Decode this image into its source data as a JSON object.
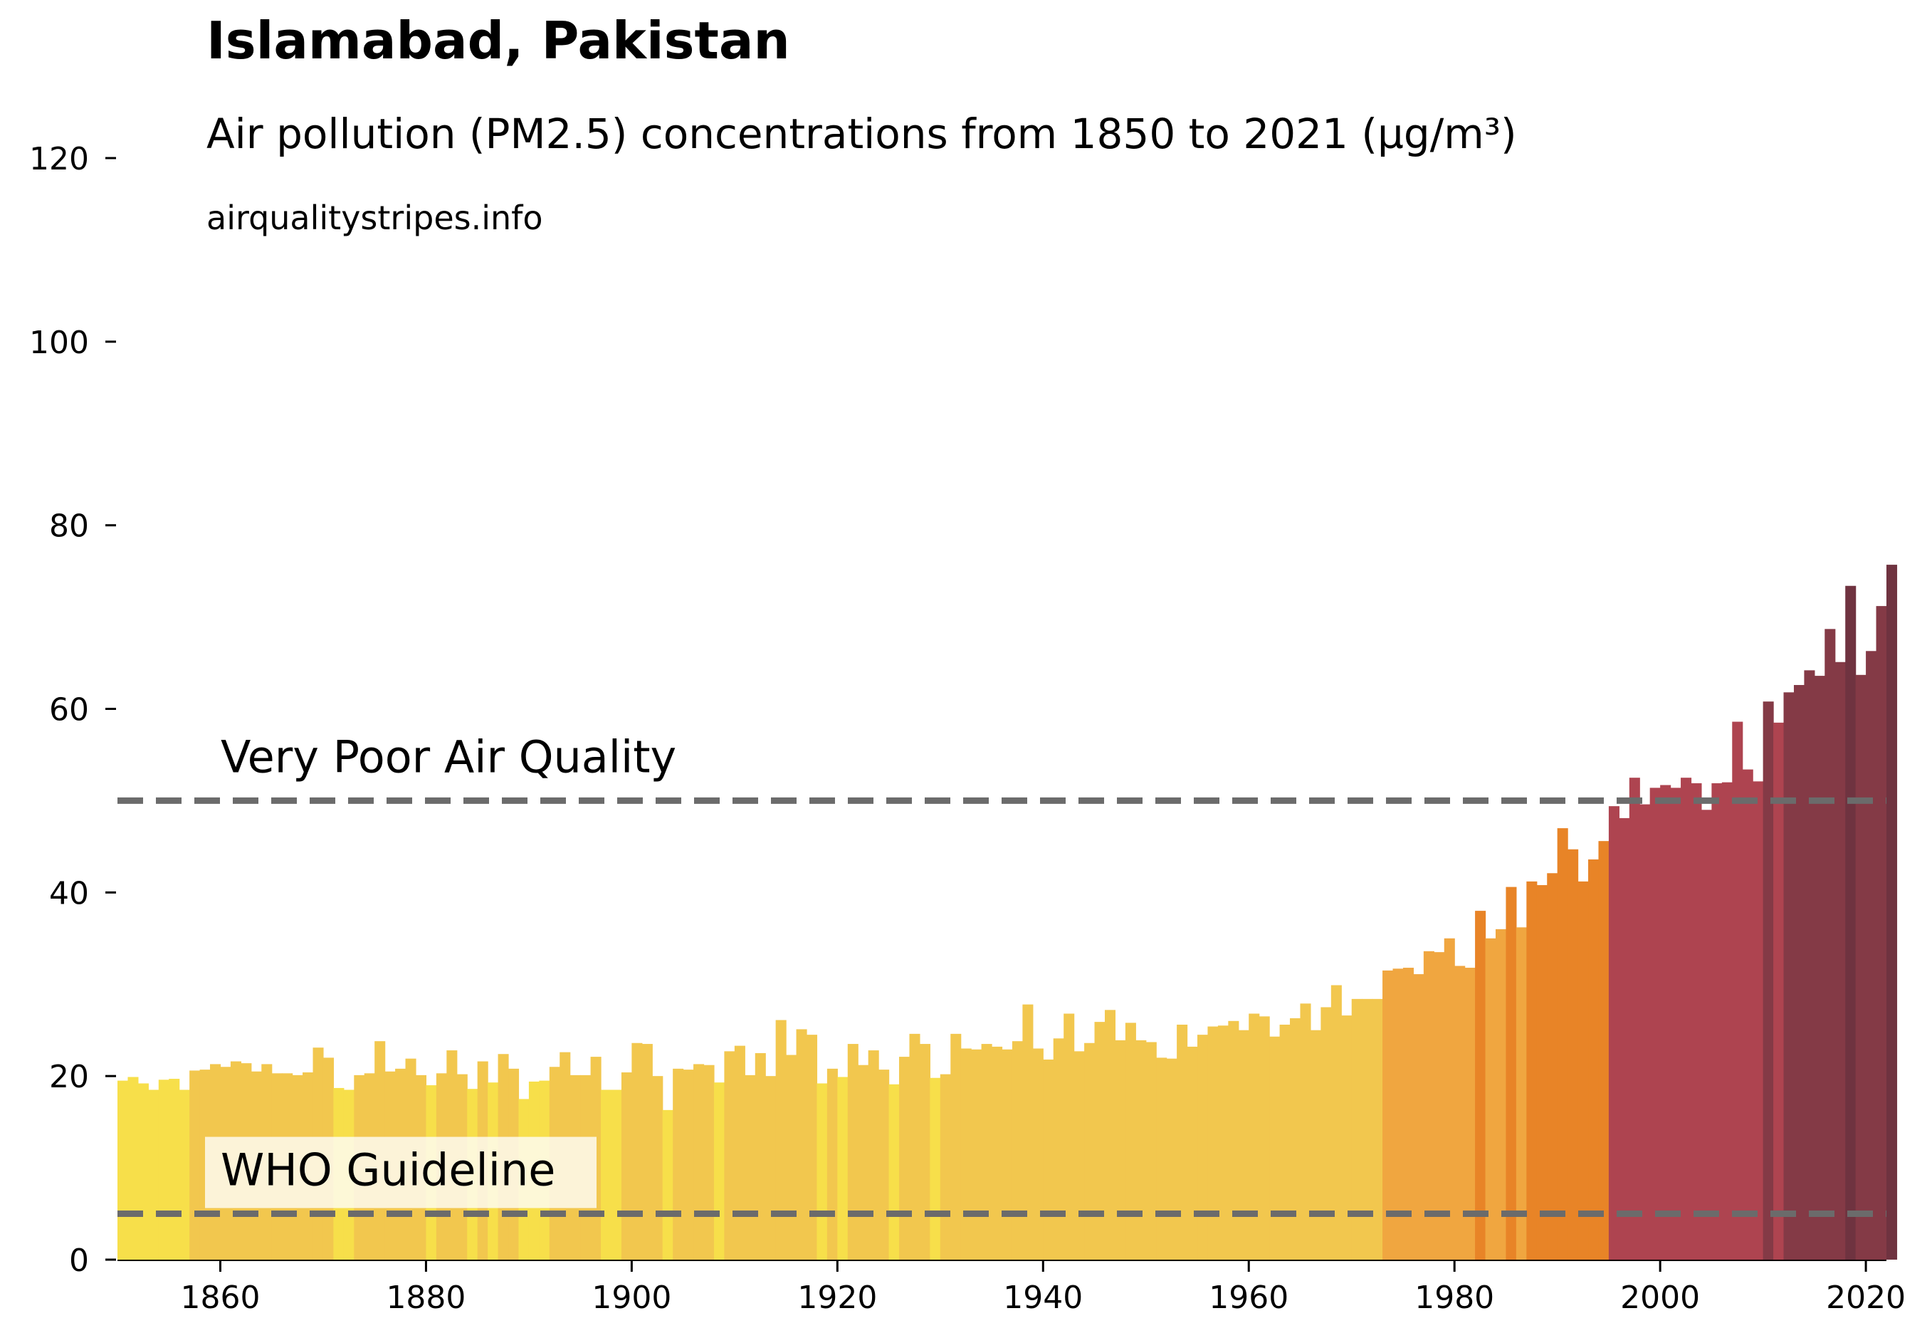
{
  "title": "Islamabad, Pakistan",
  "subtitle": "Air pollution (PM2.5) concentrations from 1850 to 2021 (µg/m³)",
  "source": "airqualitystripes.info",
  "chart_data": {
    "type": "bar",
    "title": "Islamabad, Pakistan",
    "subtitle": "Air pollution (PM2.5) concentrations from 1850 to 2021 (µg/m³)",
    "xlabel": "",
    "ylabel": "",
    "xlim": [
      1850,
      2022
    ],
    "ylim": [
      0,
      120
    ],
    "x_ticks": [
      1860,
      1880,
      1900,
      1920,
      1940,
      1960,
      1980,
      2000,
      2020
    ],
    "y_ticks": [
      0,
      20,
      40,
      60,
      80,
      100,
      120
    ],
    "grid": false,
    "start_year": 1850,
    "values": [
      19.5,
      19.9,
      19.2,
      18.5,
      19.6,
      19.7,
      18.5,
      20.6,
      20.7,
      21.3,
      21.0,
      21.6,
      21.4,
      20.5,
      21.3,
      20.3,
      20.3,
      20.1,
      20.4,
      23.1,
      22.0,
      18.7,
      18.5,
      20.1,
      20.3,
      23.8,
      20.5,
      20.8,
      21.9,
      20.1,
      19.0,
      20.3,
      22.8,
      20.2,
      18.6,
      21.6,
      19.3,
      22.4,
      20.8,
      17.5,
      19.4,
      19.5,
      21.0,
      22.6,
      20.1,
      20.1,
      22.1,
      18.5,
      18.5,
      20.4,
      23.6,
      23.5,
      20.0,
      16.3,
      20.8,
      20.7,
      21.3,
      21.2,
      19.3,
      22.7,
      23.3,
      20.1,
      22.5,
      20.0,
      26.1,
      22.3,
      25.1,
      24.5,
      19.2,
      20.8,
      19.9,
      23.5,
      21.2,
      22.8,
      20.7,
      19.1,
      22.1,
      24.6,
      23.5,
      19.8,
      20.2,
      24.6,
      23.0,
      22.9,
      23.5,
      23.2,
      22.9,
      23.8,
      27.8,
      23.0,
      21.8,
      24.1,
      26.8,
      22.7,
      23.6,
      25.9,
      27.2,
      23.9,
      25.8,
      23.9,
      23.7,
      22.0,
      21.9,
      25.6,
      23.2,
      24.5,
      25.4,
      25.5,
      26.0,
      25.0,
      26.8,
      26.5,
      24.3,
      25.6,
      26.3,
      27.9,
      25.0,
      27.5,
      29.9,
      26.6,
      28.4,
      28.4,
      28.4,
      31.5,
      31.7,
      31.8,
      31.1,
      33.6,
      33.5,
      35.0,
      32.0,
      31.8,
      38.0,
      35.0,
      36.0,
      40.6,
      36.2,
      41.2,
      40.8,
      42.1,
      47.0,
      44.7,
      41.2,
      43.6,
      45.6,
      49.4,
      48.1,
      52.5,
      49.6,
      51.4,
      51.7,
      51.4,
      52.5,
      51.9,
      49.0,
      51.9,
      52.0,
      58.6,
      53.4,
      52.1,
      60.8,
      58.5,
      61.8,
      62.6,
      64.2,
      63.6,
      68.7,
      65.1,
      73.4,
      63.7,
      66.3,
      71.2,
      75.7
    ],
    "reference_lines": [
      {
        "label": "Very Poor Air Quality",
        "value": 50
      },
      {
        "label": "WHO Guideline",
        "value": 5
      }
    ],
    "colors": {
      "low_1": "#f7df4a",
      "low_2": "#f2c74e",
      "moderate": "#f0a640",
      "high": "#e88427",
      "very_high": "#ae4450",
      "extreme": "#843a46",
      "extreme_2": "#6f3340",
      "reference_line": "#6b6b6b"
    }
  }
}
